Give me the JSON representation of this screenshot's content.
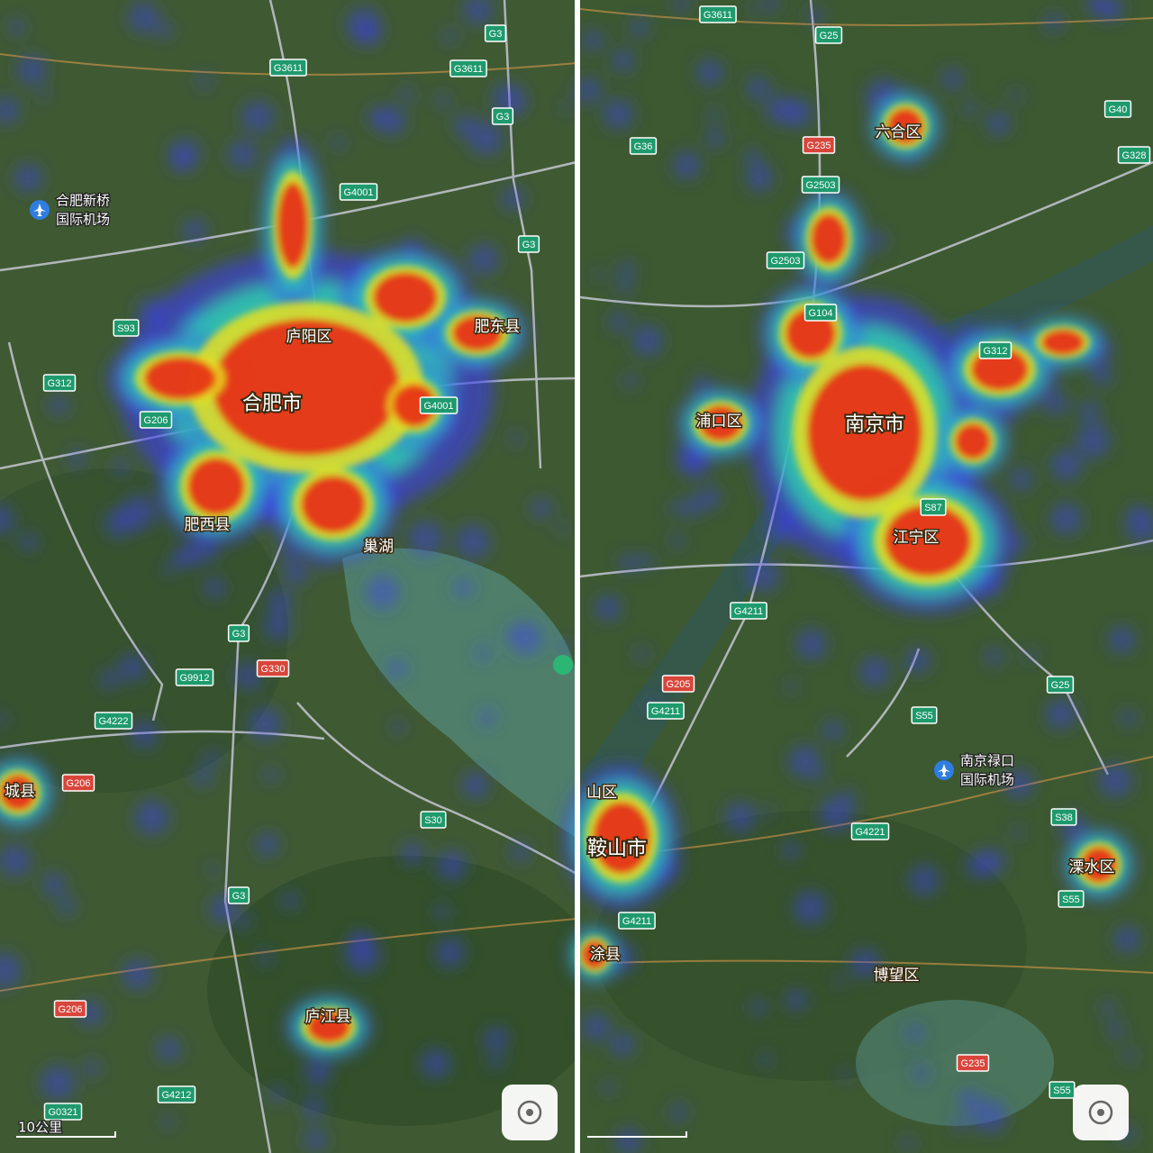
{
  "left_map": {
    "places": [
      "庐阳区",
      "合肥市",
      "肥东县",
      "肥西县",
      "巢湖",
      "庐江县",
      "城县"
    ],
    "airport": [
      "合肥新桥",
      "国际机场"
    ],
    "scale": "10公里",
    "roads": [
      {
        "label": "G3",
        "color": "#1e9a6c"
      },
      {
        "label": "G3611",
        "color": "#1e9a6c"
      },
      {
        "label": "G3611",
        "color": "#1e9a6c"
      },
      {
        "label": "G3",
        "color": "#1e9a6c"
      },
      {
        "label": "G4001",
        "color": "#1e9a6c"
      },
      {
        "label": "G3",
        "color": "#1e9a6c"
      },
      {
        "label": "S93",
        "color": "#1e9a6c"
      },
      {
        "label": "G312",
        "color": "#1e9a6c"
      },
      {
        "label": "G206",
        "color": "#1e9a6c"
      },
      {
        "label": "G4001",
        "color": "#1e9a6c"
      },
      {
        "label": "G3",
        "color": "#1e9a6c"
      },
      {
        "label": "G9912",
        "color": "#1e9a6c"
      },
      {
        "label": "G330",
        "color": "#d8453a"
      },
      {
        "label": "G4222",
        "color": "#1e9a6c"
      },
      {
        "label": "G206",
        "color": "#d8453a"
      },
      {
        "label": "S30",
        "color": "#1e9a6c"
      },
      {
        "label": "G3",
        "color": "#1e9a6c"
      },
      {
        "label": "G206",
        "color": "#d8453a"
      },
      {
        "label": "G4212",
        "color": "#1e9a6c"
      },
      {
        "label": "G0321",
        "color": "#1e9a6c"
      }
    ]
  },
  "right_map": {
    "places": [
      "六合区",
      "浦口区",
      "南京市",
      "江宁区",
      "鞍山市",
      "山区",
      "涂县",
      "溧水区",
      "博望区"
    ],
    "airport": [
      "南京禄口",
      "国际机场"
    ],
    "roads": [
      {
        "label": "G3611",
        "color": "#1e9a6c"
      },
      {
        "label": "G25",
        "color": "#1e9a6c"
      },
      {
        "label": "G40",
        "color": "#1e9a6c"
      },
      {
        "label": "G36",
        "color": "#1e9a6c"
      },
      {
        "label": "G235",
        "color": "#d8453a"
      },
      {
        "label": "G328",
        "color": "#1e9a6c"
      },
      {
        "label": "G2503",
        "color": "#1e9a6c"
      },
      {
        "label": "G2503",
        "color": "#1e9a6c"
      },
      {
        "label": "G104",
        "color": "#1e9a6c"
      },
      {
        "label": "G312",
        "color": "#1e9a6c"
      },
      {
        "label": "S87",
        "color": "#1e9a6c"
      },
      {
        "label": "G4211",
        "color": "#1e9a6c"
      },
      {
        "label": "G205",
        "color": "#d8453a"
      },
      {
        "label": "G4211",
        "color": "#1e9a6c"
      },
      {
        "label": "G25",
        "color": "#1e9a6c"
      },
      {
        "label": "S55",
        "color": "#1e9a6c"
      },
      {
        "label": "S38",
        "color": "#1e9a6c"
      },
      {
        "label": "G4221",
        "color": "#1e9a6c"
      },
      {
        "label": "S55",
        "color": "#1e9a6c"
      },
      {
        "label": "G4211",
        "color": "#1e9a6c"
      },
      {
        "label": "G235",
        "color": "#d8453a"
      },
      {
        "label": "S55",
        "color": "#1e9a6c"
      }
    ]
  }
}
